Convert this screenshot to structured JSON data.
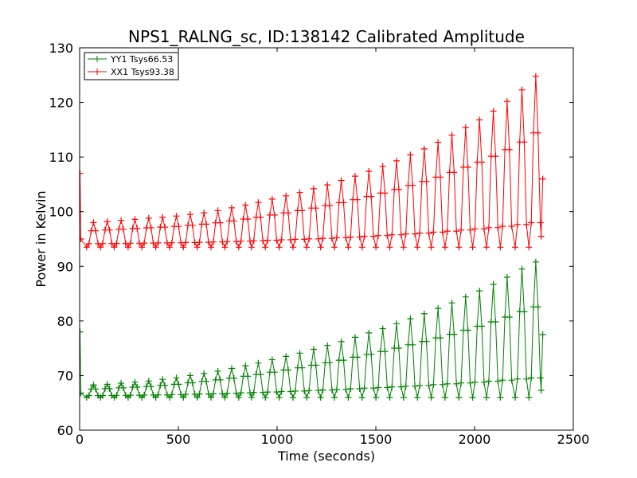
{
  "chart_data": {
    "type": "line",
    "title": "NPS1_RALNG_sc, ID:138142 Calibrated Amplitude",
    "xlabel": "Time (seconds)",
    "ylabel": "Power in Kelvin",
    "xlim": [
      0,
      2500
    ],
    "ylim": [
      60,
      130
    ],
    "xticks": [
      0,
      500,
      1000,
      1500,
      2000,
      2500
    ],
    "yticks": [
      60,
      70,
      80,
      90,
      100,
      110,
      120,
      130
    ],
    "grid": false,
    "legend_position": "top-left",
    "marker": "+",
    "series": [
      {
        "name": "YY1 Tsys66.53",
        "color": "#008000",
        "start": {
          "t": 2,
          "v": 78
        },
        "end": {
          "t": 2345,
          "v": 77.5
        },
        "baseline": 66.8,
        "minimum": 66,
        "oscillation_period_s": 69,
        "points_per_cycle": 6,
        "peaks": [
          {
            "t": 70,
            "v": 68.3
          },
          {
            "t": 140,
            "v": 68.4
          },
          {
            "t": 210,
            "v": 68.6
          },
          {
            "t": 280,
            "v": 68.8
          },
          {
            "t": 350,
            "v": 69.0
          },
          {
            "t": 420,
            "v": 69.3
          },
          {
            "t": 490,
            "v": 69.6
          },
          {
            "t": 560,
            "v": 70.0
          },
          {
            "t": 630,
            "v": 70.4
          },
          {
            "t": 700,
            "v": 70.8
          },
          {
            "t": 770,
            "v": 71.3
          },
          {
            "t": 840,
            "v": 71.8
          },
          {
            "t": 905,
            "v": 72.3
          },
          {
            "t": 975,
            "v": 72.9
          },
          {
            "t": 1045,
            "v": 73.5
          },
          {
            "t": 1115,
            "v": 74.1
          },
          {
            "t": 1185,
            "v": 74.8
          },
          {
            "t": 1255,
            "v": 75.5
          },
          {
            "t": 1325,
            "v": 76.2
          },
          {
            "t": 1395,
            "v": 77.0
          },
          {
            "t": 1465,
            "v": 77.8
          },
          {
            "t": 1535,
            "v": 78.6
          },
          {
            "t": 1605,
            "v": 79.5
          },
          {
            "t": 1675,
            "v": 80.4
          },
          {
            "t": 1745,
            "v": 81.3
          },
          {
            "t": 1815,
            "v": 82.3
          },
          {
            "t": 1885,
            "v": 83.3
          },
          {
            "t": 1955,
            "v": 84.4
          },
          {
            "t": 2025,
            "v": 85.5
          },
          {
            "t": 2095,
            "v": 86.7
          },
          {
            "t": 2165,
            "v": 88.0
          },
          {
            "t": 2240,
            "v": 89.5
          },
          {
            "t": 2310,
            "v": 90.8
          }
        ]
      },
      {
        "name": "XX1 Tsys93.38",
        "color": "#ff0000",
        "start": {
          "t": 2,
          "v": 107
        },
        "end": {
          "t": 2345,
          "v": 106
        },
        "baseline": 95.0,
        "minimum": 93.5,
        "oscillation_period_s": 69,
        "points_per_cycle": 6,
        "peaks": [
          {
            "t": 70,
            "v": 98.0
          },
          {
            "t": 140,
            "v": 98.2
          },
          {
            "t": 210,
            "v": 98.4
          },
          {
            "t": 280,
            "v": 98.6
          },
          {
            "t": 350,
            "v": 98.8
          },
          {
            "t": 420,
            "v": 99.0
          },
          {
            "t": 490,
            "v": 99.2
          },
          {
            "t": 560,
            "v": 99.5
          },
          {
            "t": 630,
            "v": 99.8
          },
          {
            "t": 700,
            "v": 100.2
          },
          {
            "t": 770,
            "v": 100.7
          },
          {
            "t": 840,
            "v": 101.2
          },
          {
            "t": 905,
            "v": 101.7
          },
          {
            "t": 975,
            "v": 102.3
          },
          {
            "t": 1045,
            "v": 102.9
          },
          {
            "t": 1115,
            "v": 103.5
          },
          {
            "t": 1185,
            "v": 104.2
          },
          {
            "t": 1255,
            "v": 104.9
          },
          {
            "t": 1325,
            "v": 105.7
          },
          {
            "t": 1395,
            "v": 106.5
          },
          {
            "t": 1465,
            "v": 107.4
          },
          {
            "t": 1535,
            "v": 108.3
          },
          {
            "t": 1605,
            "v": 109.3
          },
          {
            "t": 1675,
            "v": 110.4
          },
          {
            "t": 1745,
            "v": 111.5
          },
          {
            "t": 1815,
            "v": 112.7
          },
          {
            "t": 1885,
            "v": 114.0
          },
          {
            "t": 1955,
            "v": 115.4
          },
          {
            "t": 2025,
            "v": 116.8
          },
          {
            "t": 2095,
            "v": 118.4
          },
          {
            "t": 2165,
            "v": 120.2
          },
          {
            "t": 2240,
            "v": 122.3
          },
          {
            "t": 2310,
            "v": 124.8
          }
        ]
      }
    ]
  }
}
